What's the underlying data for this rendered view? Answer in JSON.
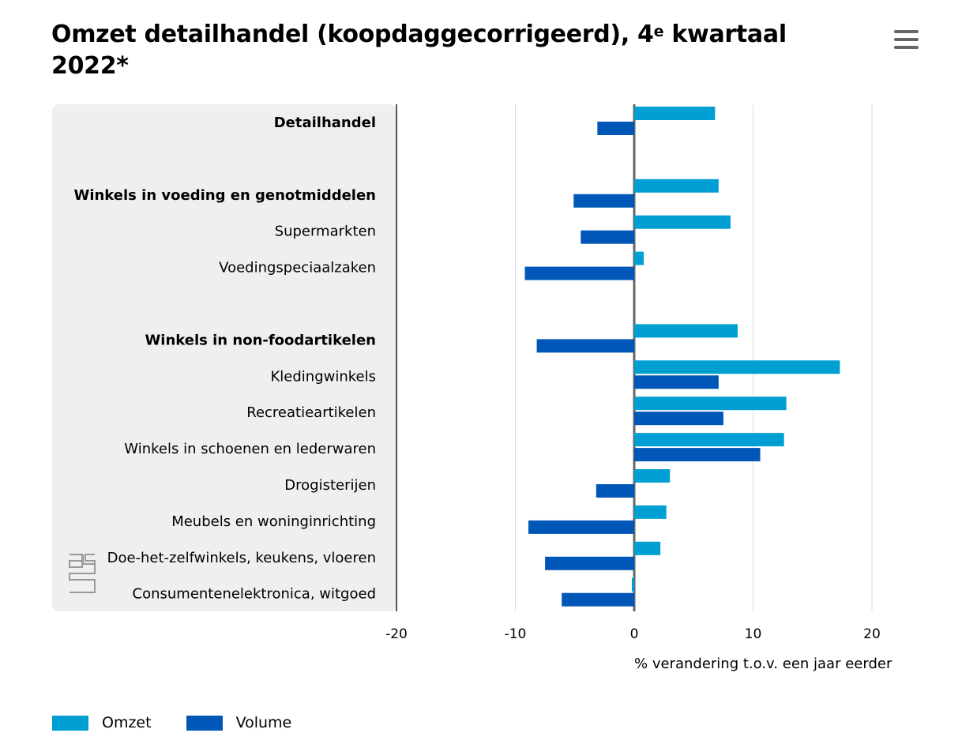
{
  "title": {
    "text_before": "Omzet detailhandel (koopdaggecorrigeerd), 4",
    "superscript": "e",
    "text_after": " kwartaal 2022*"
  },
  "menu": {
    "icon": "hamburger-menu-icon"
  },
  "logo": {
    "icon": "cbs-logo-icon"
  },
  "colors": {
    "omzet": "#009fd3",
    "volume": "#0057b8",
    "label_panel": "#efefef",
    "zero_line": "#666666",
    "grid": "#dddddd"
  },
  "chart_data": {
    "type": "bar",
    "orientation": "horizontal",
    "title": "Omzet detailhandel (koopdaggecorrigeerd), 4e kwartaal 2022*",
    "xlabel": "% verandering t.o.v. een jaar eerder",
    "xlim": [
      -20,
      20
    ],
    "xticks": [
      "-20",
      "-10",
      "0",
      "10",
      "20"
    ],
    "grid": true,
    "legend_position": "bottom-left",
    "categories": [
      {
        "label": "Detailhandel",
        "bold": true
      },
      {
        "label": "",
        "bold": false
      },
      {
        "label": "Winkels in voeding en genotmiddelen",
        "bold": true
      },
      {
        "label": "Supermarkten",
        "bold": false
      },
      {
        "label": "Voedingspeciaalzaken",
        "bold": false
      },
      {
        "label": "",
        "bold": false
      },
      {
        "label": "Winkels in non-foodartikelen",
        "bold": true
      },
      {
        "label": "Kledingwinkels",
        "bold": false
      },
      {
        "label": "Recreatieartikelen",
        "bold": false
      },
      {
        "label": "Winkels in schoenen en lederwaren",
        "bold": false
      },
      {
        "label": "Drogisterijen",
        "bold": false
      },
      {
        "label": "Meubels en woninginrichting",
        "bold": false
      },
      {
        "label": "Doe-het-zelfwinkels, keukens, vloeren",
        "bold": false
      },
      {
        "label": "Consumentenelektronica, witgoed",
        "bold": false
      }
    ],
    "series": [
      {
        "name": "Omzet",
        "color": "#009fd3",
        "values": [
          6.8,
          null,
          7.1,
          8.1,
          0.8,
          null,
          8.7,
          17.3,
          12.8,
          12.6,
          3.0,
          2.7,
          2.2,
          -0.2
        ]
      },
      {
        "name": "Volume",
        "color": "#0057b8",
        "values": [
          -3.1,
          null,
          -5.1,
          -4.5,
          -9.2,
          null,
          -8.2,
          7.1,
          7.5,
          10.6,
          -3.2,
          -8.9,
          -7.5,
          -6.1
        ]
      }
    ]
  }
}
